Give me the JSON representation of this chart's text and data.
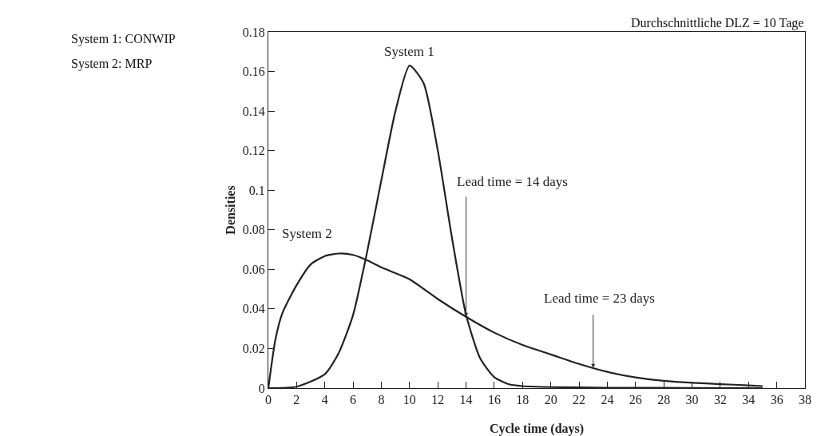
{
  "chart_data": {
    "type": "line",
    "xlabel": "Cycle time (days)",
    "ylabel": "Densities",
    "xlim": [
      0,
      38
    ],
    "xticks": [
      0,
      2,
      4,
      6,
      8,
      10,
      12,
      14,
      16,
      18,
      20,
      22,
      24,
      26,
      28,
      30,
      32,
      34,
      36,
      38
    ],
    "ylim": [
      0,
      0.18
    ],
    "yticks": [
      0,
      0.02,
      0.04,
      0.06,
      0.08,
      0.1,
      0.12,
      0.14,
      0.16,
      0.18
    ],
    "grid": false,
    "legend": false,
    "marker": "none",
    "line_style": "solid",
    "series": [
      {
        "name": "System 1",
        "color": "#222222",
        "x": [
          0,
          2,
          4,
          5,
          6,
          7,
          8,
          9,
          10,
          11,
          12,
          13,
          14,
          15,
          16,
          17,
          18,
          20,
          24,
          30,
          35
        ],
        "values": [
          0,
          0.0007,
          0.007,
          0.018,
          0.037,
          0.069,
          0.105,
          0.14,
          0.163,
          0.154,
          0.12,
          0.076,
          0.037,
          0.015,
          0.0055,
          0.002,
          0.001,
          0.0005,
          0.0002,
          0.0001,
          0
        ]
      },
      {
        "name": "System 2",
        "color": "#222222",
        "x": [
          0,
          0.5,
          1,
          2,
          3,
          4,
          5,
          6,
          7,
          8,
          10,
          12,
          14,
          16,
          18,
          20,
          22,
          24,
          26,
          28,
          30,
          32,
          34,
          35
        ],
        "values": [
          0,
          0.0245,
          0.038,
          0.052,
          0.0625,
          0.0667,
          0.068,
          0.0673,
          0.0646,
          0.061,
          0.055,
          0.045,
          0.036,
          0.028,
          0.0218,
          0.017,
          0.0122,
          0.0082,
          0.0054,
          0.0037,
          0.0027,
          0.002,
          0.0014,
          0.001
        ]
      }
    ],
    "annotations": [
      "Durchschnittliche DLZ = 10 Tage",
      "System 1: CONWIP",
      "System 2: MRP",
      {
        "text": "Lead time = 14 days",
        "x": 14,
        "y": 0.036
      },
      {
        "text": "Lead time = 23 days",
        "x": 23,
        "y": 0.0102
      }
    ]
  }
}
